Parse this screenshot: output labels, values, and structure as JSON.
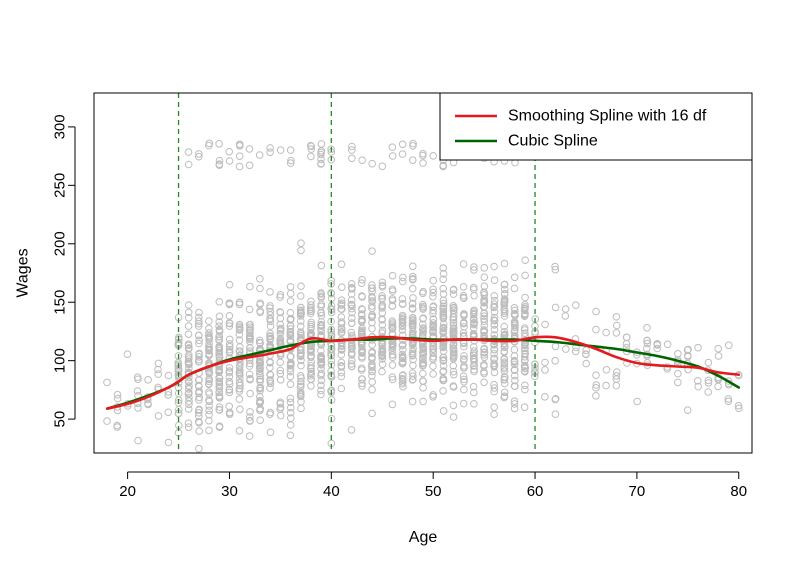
{
  "chart_data": {
    "type": "scatter",
    "title": "",
    "xlabel": "Age",
    "ylabel": "Wages",
    "xlim": [
      16.7,
      81.3
    ],
    "ylim": [
      21,
      329
    ],
    "x_ticks": [
      20,
      30,
      40,
      50,
      60,
      70,
      80
    ],
    "y_ticks": [
      50,
      100,
      150,
      200,
      250,
      300
    ],
    "grid": false,
    "legend_position": "top-right",
    "knots": [
      25,
      40,
      60
    ],
    "colors": {
      "points": "#bdbdbd",
      "smoothing": "#e41a1c",
      "cubic": "#006400",
      "knot_lines": "#228b22"
    },
    "scatter_point_count": 1600,
    "series": [
      {
        "name": "Smoothing Spline with 16 df",
        "x": [
          18,
          20,
          22,
          24,
          25,
          26,
          28,
          30,
          32,
          34,
          36,
          38,
          40,
          42,
          44,
          46,
          48,
          50,
          52,
          54,
          56,
          58,
          60,
          62,
          64,
          66,
          68,
          70,
          72,
          74,
          76,
          78,
          80
        ],
        "y": [
          59,
          63,
          69,
          77,
          82,
          88,
          95,
          100,
          103,
          106,
          110,
          119,
          117,
          118,
          120,
          120,
          118,
          117,
          118,
          118,
          117,
          117,
          120,
          120,
          116,
          110,
          103,
          98,
          96,
          95,
          94,
          90,
          88
        ]
      },
      {
        "name": "Cubic Spline",
        "x": [
          18,
          20,
          22,
          24,
          25,
          26,
          28,
          30,
          32,
          34,
          36,
          38,
          40,
          42,
          44,
          46,
          48,
          50,
          52,
          54,
          56,
          58,
          60,
          62,
          64,
          66,
          68,
          70,
          72,
          74,
          76,
          78,
          80
        ],
        "y": [
          59,
          64,
          70,
          77,
          82,
          88,
          95,
          101,
          105,
          109,
          113,
          116,
          117,
          118,
          118,
          119,
          119,
          118,
          118,
          118,
          118,
          118,
          117,
          116,
          114,
          112,
          110,
          107,
          104,
          100,
          95,
          87,
          77
        ]
      }
    ]
  }
}
